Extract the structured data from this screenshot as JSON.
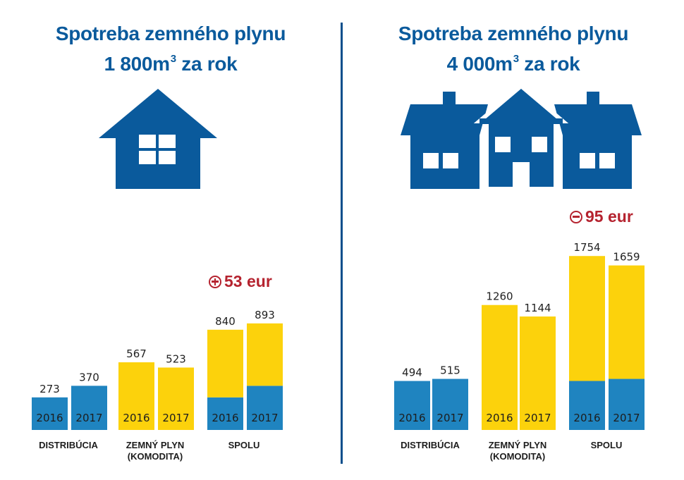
{
  "colors": {
    "title": "#0a5a9c",
    "house": "#0a5a9c",
    "distribution": "#1f84c0",
    "commodity": "#fcd20c",
    "difference": "#b5232f",
    "divider": "#0a4f8c"
  },
  "panels": [
    {
      "title_line1": "Spotreba zemného plynu",
      "title_line2_value": "1 800m",
      "title_line2_sup": "3",
      "title_line2_suffix": " za rok",
      "house_icon": "single-house-icon",
      "difference_sign": "plus",
      "difference_text": "53 eur"
    },
    {
      "title_line1": "Spotreba zemného plynu",
      "title_line2_value": "4 000m",
      "title_line2_sup": "3",
      "title_line2_suffix": " za rok",
      "house_icon": "multi-house-icon",
      "difference_sign": "minus",
      "difference_text": "95 eur"
    }
  ],
  "chart_data": [
    {
      "type": "bar",
      "categories": [
        {
          "label_lines": [
            "DISTRIBÚCIA"
          ]
        },
        {
          "label_lines": [
            "ZEMNÝ PLYN",
            "(KOMODITA)"
          ]
        },
        {
          "label_lines": [
            "SPOLU"
          ]
        }
      ],
      "years": [
        "2016",
        "2017"
      ],
      "bars": [
        {
          "category": 0,
          "year": "2016",
          "total": 273,
          "distribution": 273,
          "commodity": 0,
          "label": "273"
        },
        {
          "category": 0,
          "year": "2017",
          "total": 370,
          "distribution": 370,
          "commodity": 0,
          "label": "370"
        },
        {
          "category": 1,
          "year": "2016",
          "total": 567,
          "distribution": 0,
          "commodity": 567,
          "label": "567"
        },
        {
          "category": 1,
          "year": "2017",
          "total": 523,
          "distribution": 0,
          "commodity": 523,
          "label": "523"
        },
        {
          "category": 2,
          "year": "2016",
          "total": 840,
          "distribution": 273,
          "commodity": 567,
          "label": "840"
        },
        {
          "category": 2,
          "year": "2017",
          "total": 893,
          "distribution": 370,
          "commodity": 523,
          "label": "893"
        }
      ]
    },
    {
      "type": "bar",
      "categories": [
        {
          "label_lines": [
            "DISTRIBÚCIA"
          ]
        },
        {
          "label_lines": [
            "ZEMNÝ PLYN",
            "(KOMODITA)"
          ]
        },
        {
          "label_lines": [
            "SPOLU"
          ]
        }
      ],
      "years": [
        "2016",
        "2017"
      ],
      "bars": [
        {
          "category": 0,
          "year": "2016",
          "total": 494,
          "distribution": 494,
          "commodity": 0,
          "label": "494"
        },
        {
          "category": 0,
          "year": "2017",
          "total": 515,
          "distribution": 515,
          "commodity": 0,
          "label": "515"
        },
        {
          "category": 1,
          "year": "2016",
          "total": 1260,
          "distribution": 0,
          "commodity": 1260,
          "label": "1260"
        },
        {
          "category": 1,
          "year": "2017",
          "total": 1144,
          "distribution": 0,
          "commodity": 1144,
          "label": "1144"
        },
        {
          "category": 2,
          "year": "2016",
          "total": 1754,
          "distribution": 494,
          "commodity": 1260,
          "label": "1754"
        },
        {
          "category": 2,
          "year": "2017",
          "total": 1659,
          "distribution": 515,
          "commodity": 1144,
          "label": "1659"
        }
      ]
    }
  ]
}
